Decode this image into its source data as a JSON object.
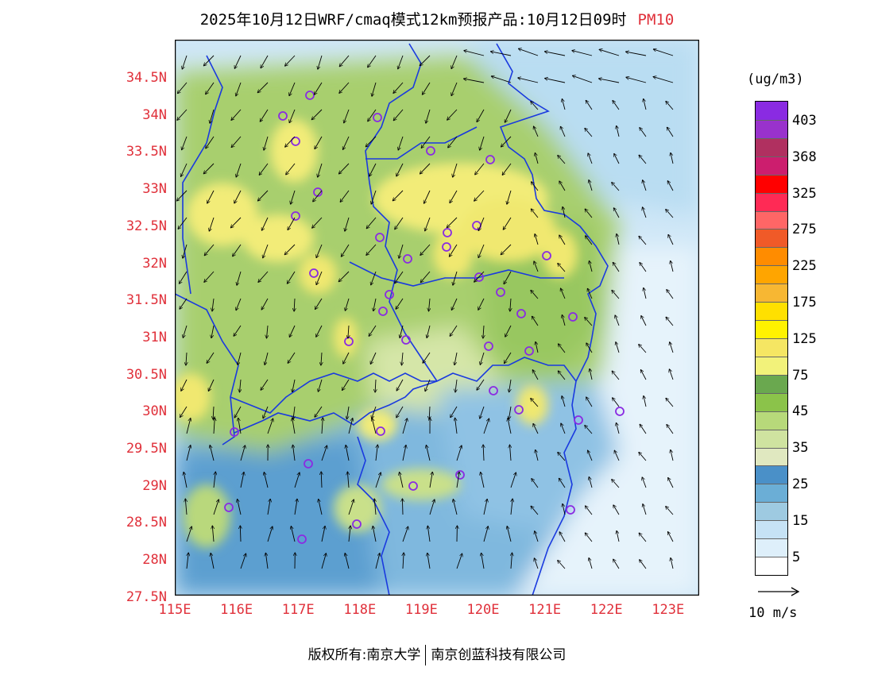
{
  "title": {
    "main": "2025年10月12日WRF/cmaq模式12km预报产品:10月12日09时",
    "species": "PM10"
  },
  "lat_ticks": [
    "34.5N",
    "34N",
    "33.5N",
    "33N",
    "32.5N",
    "32N",
    "31.5N",
    "31N",
    "30.5N",
    "30N",
    "29.5N",
    "29N",
    "28.5N",
    "28N",
    "27.5N"
  ],
  "lon_ticks": [
    "115E",
    "116E",
    "117E",
    "118E",
    "119E",
    "120E",
    "121E",
    "122E",
    "123E"
  ],
  "colorbar": {
    "unit": "(ug/m3)",
    "labels": [
      "403",
      "368",
      "325",
      "275",
      "225",
      "175",
      "125",
      "75",
      "45",
      "35",
      "25",
      "15",
      "5"
    ],
    "colors": [
      "#8a2be2",
      "#9932cc",
      "#b03060",
      "#cc1e6e",
      "#ff0000",
      "#ff2a55",
      "#ff6666",
      "#f05a28",
      "#ff8c00",
      "#ffa500",
      "#f7b733",
      "#ffe000",
      "#fff200",
      "#f5e663",
      "#f2f27a",
      "#6aa84f",
      "#8bc34a",
      "#b7d97a",
      "#cfe3a0",
      "#e0e8c0",
      "#4a90c8",
      "#6baed6",
      "#9ecae1",
      "#c6e2f5",
      "#deeffa",
      "#ffffff"
    ]
  },
  "vector_reference": {
    "label": "10 m/s"
  },
  "footer": {
    "left": "版权所有:南京大学",
    "right": "南京创蓝科技有限公司"
  },
  "map_extent": {
    "lon": [
      115,
      123.5
    ],
    "lat": [
      27.5,
      35
    ]
  },
  "colors": {
    "tick_label": "#e0303a",
    "boundary": "#1a3adf",
    "station_ring": "#8a2be2",
    "wind_arrow": "#000000"
  }
}
